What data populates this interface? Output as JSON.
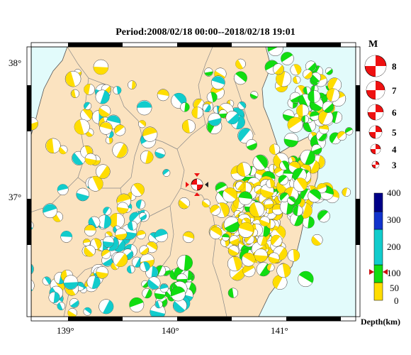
{
  "title": "Period:2008/02/18 00:00--2018/02/18 19:01",
  "map": {
    "lat_labels": [
      "38°",
      "37°"
    ],
    "lon_labels": [
      "139°",
      "140°",
      "141°"
    ],
    "land_color": "#fbe3c0",
    "sea_color": "#e2fbfb"
  },
  "magnitude_legend": {
    "title": "M",
    "items": [
      "8",
      "7",
      "6",
      "5",
      "4",
      "3"
    ],
    "color": "#ee1111"
  },
  "depth_legend": {
    "title": "Depth(km)",
    "labels": [
      "400",
      "300",
      "200",
      "100",
      "50",
      "0"
    ],
    "colors": {
      "shallow": "#ffdd00",
      "mid": "#11dd11",
      "intermediate": "#11cccc",
      "deep": "#1133cc",
      "deepest": "#000088"
    },
    "marker": "red-arrow-icon"
  },
  "mainshock": {
    "color": "#ee1111",
    "marker": "star-triangle-icon"
  }
}
